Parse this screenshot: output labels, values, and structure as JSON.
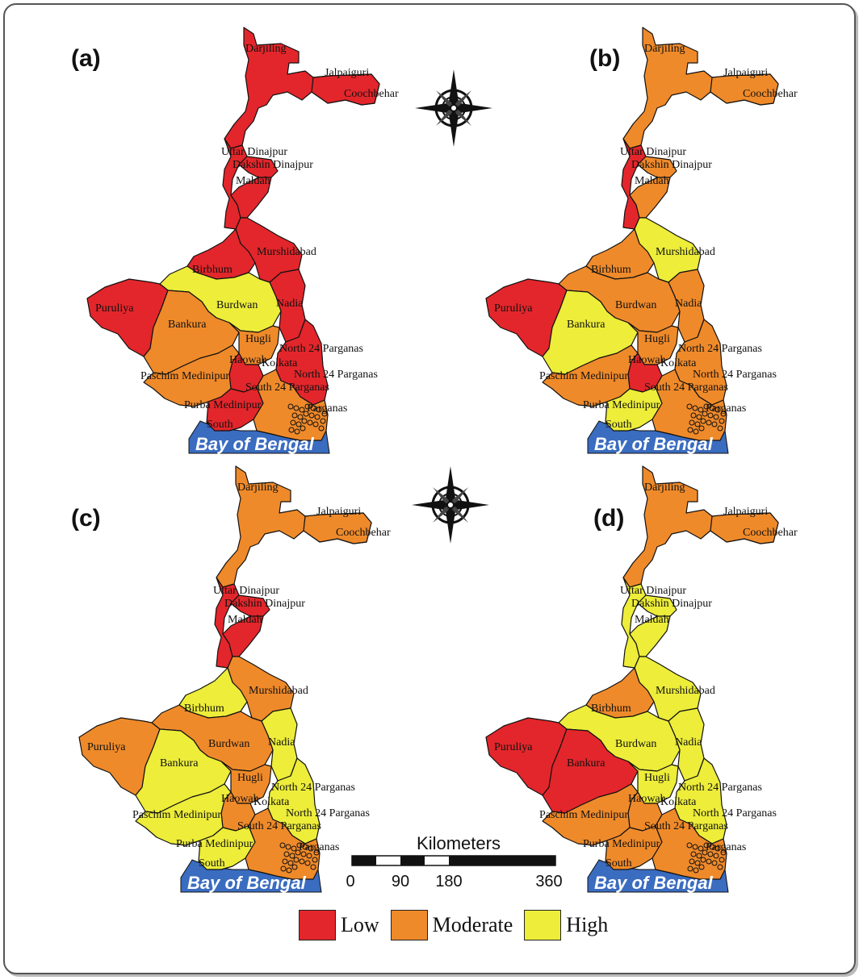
{
  "panels": [
    {
      "label": "(a)",
      "colors": {
        "north": "low",
        "cooch": "low",
        "uttar": "low",
        "dakshin": "low",
        "maldah": "low",
        "murshidabad": "low",
        "birbhum": "low",
        "nadia": "low",
        "burdwan": "high",
        "puruliya": "low",
        "bankura": "moderate",
        "hugli": "moderate",
        "howrah": "low",
        "paschim": "moderate",
        "purba": "low",
        "north24": "low",
        "south24": "moderate"
      }
    },
    {
      "label": "(b)",
      "colors": {
        "north": "moderate",
        "cooch": "moderate",
        "uttar": "low",
        "dakshin": "moderate",
        "maldah": "moderate",
        "murshidabad": "high",
        "birbhum": "moderate",
        "nadia": "moderate",
        "burdwan": "moderate",
        "puruliya": "low",
        "bankura": "high",
        "hugli": "moderate",
        "howrah": "low",
        "paschim": "moderate",
        "purba": "high",
        "north24": "moderate",
        "south24": "moderate"
      }
    },
    {
      "label": "(c)",
      "colors": {
        "north": "moderate",
        "cooch": "moderate",
        "uttar": "low",
        "dakshin": "low",
        "maldah": "low",
        "murshidabad": "moderate",
        "birbhum": "high",
        "nadia": "high",
        "burdwan": "moderate",
        "puruliya": "moderate",
        "bankura": "high",
        "hugli": "moderate",
        "howrah": "moderate",
        "paschim": "high",
        "purba": "high",
        "north24": "high",
        "south24": "moderate"
      }
    },
    {
      "label": "(d)",
      "colors": {
        "north": "moderate",
        "cooch": "moderate",
        "uttar": "high",
        "dakshin": "high",
        "maldah": "high",
        "murshidabad": "high",
        "birbhum": "moderate",
        "nadia": "high",
        "burdwan": "high",
        "puruliya": "low",
        "bankura": "low",
        "hugli": "high",
        "howrah": "moderate",
        "paschim": "moderate",
        "purba": "moderate",
        "north24": "high",
        "south24": "moderate"
      }
    }
  ],
  "districts": {
    "darjiling": "Darjiling",
    "jalpaiguri": "Jalpaiguri",
    "coochbehar": "Coochbehar",
    "uttar": "Uttar Dinajpur",
    "dakshin": "Dakshin Dinajpur",
    "maldah": "Maldah",
    "murshidabad": "Murshidabad",
    "birbhum": "Birbhum",
    "puruliya": "Puruliya",
    "burdwan": "Burdwan",
    "nadia": "Nadia",
    "bankura": "Bankura",
    "hugli": "Hugli",
    "north24a": "North 24 Parganas",
    "howrah": "Haowah",
    "kolkata": "Kolkata",
    "north24b": "North 24 Parganas",
    "paschim": "Paschim Medinipur",
    "south24": "South 24 Parganas",
    "purba": "Purba Medinipur",
    "south24b": "Parganas",
    "south": "South"
  },
  "bay": "Bay of Bengal",
  "scale": {
    "title": "Kilometers",
    "ticks": [
      "0",
      "90",
      "180",
      "360"
    ]
  },
  "legend": [
    {
      "key": "low",
      "label": "Low",
      "color": "#e3262b"
    },
    {
      "key": "moderate",
      "label": "Moderate",
      "color": "#ef8a2a"
    },
    {
      "key": "high",
      "label": "High",
      "color": "#eded3a"
    }
  ],
  "sea_color": "#3a6cc0"
}
